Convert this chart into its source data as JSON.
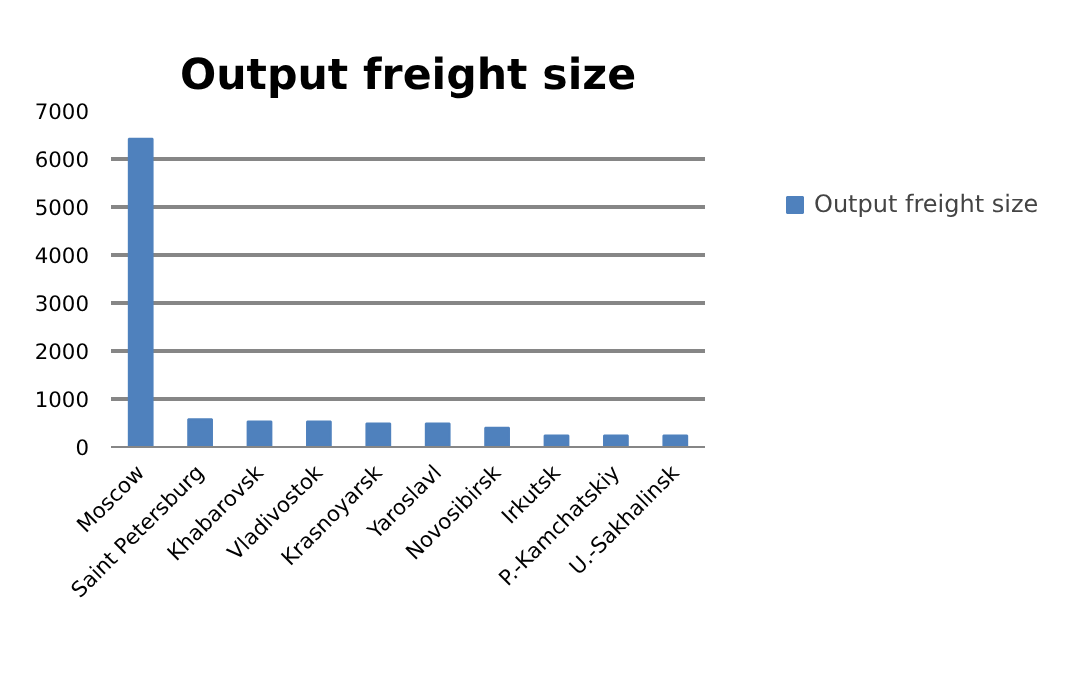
{
  "chart_data": {
    "type": "bar",
    "title": "Output freight size",
    "categories": [
      "Moscow",
      "Saint Petersburg",
      "Khabarovsk",
      "Vladivostok",
      "Krasnoyarsk",
      "Yaroslavl",
      "Novosibirsk",
      "Irkutsk",
      "P.-Kamchatskiy",
      "U.-Sakhalinsk"
    ],
    "series": [
      {
        "name": "Output freight size",
        "color": "#4f81bd",
        "values": [
          6420,
          580,
          530,
          530,
          490,
          490,
          400,
          240,
          240,
          240
        ]
      }
    ],
    "ylim": [
      0,
      7000
    ],
    "yticks": [
      0,
      1000,
      2000,
      3000,
      4000,
      5000,
      6000,
      7000
    ],
    "grid": "y",
    "legend": "right"
  }
}
